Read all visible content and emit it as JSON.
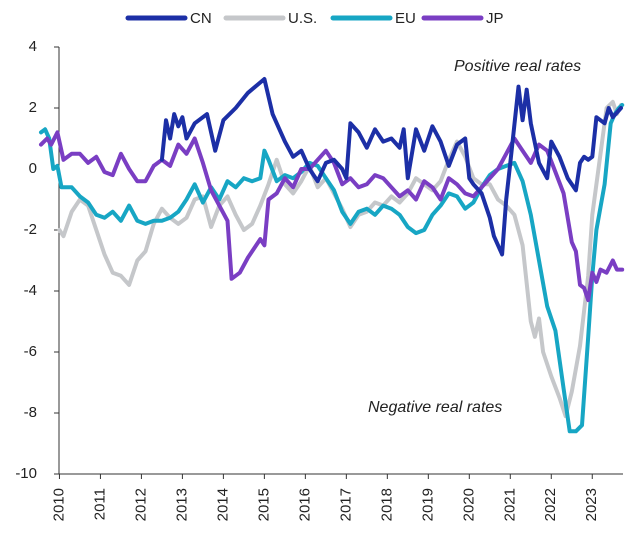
{
  "chart_data": {
    "type": "line",
    "annotations": [
      "Positive real rates",
      "Negative real rates"
    ],
    "xlim": [
      2009.55,
      2023.75
    ],
    "xticks": [
      2010,
      2011,
      2012,
      2013,
      2014,
      2015,
      2016,
      2017,
      2018,
      2019,
      2020,
      2021,
      2022,
      2023
    ],
    "ylim": [
      -10,
      4
    ],
    "yticks": [
      -10,
      -8,
      -6,
      -4,
      -2,
      0,
      2,
      4
    ],
    "grid": false,
    "legend": "top",
    "series": [
      {
        "name": "CN",
        "color": "#1c2fa6",
        "x": [
          2012.5,
          2012.6,
          2012.7,
          2012.8,
          2012.9,
          2013.0,
          2013.1,
          2013.3,
          2013.6,
          2013.8,
          2014.0,
          2014.3,
          2014.6,
          2015.0,
          2015.2,
          2015.5,
          2015.7,
          2015.9,
          2016.1,
          2016.3,
          2016.5,
          2016.7,
          2016.9,
          2017.0,
          2017.1,
          2017.3,
          2017.5,
          2017.7,
          2017.9,
          2018.1,
          2018.3,
          2018.4,
          2018.5,
          2018.7,
          2018.9,
          2019.1,
          2019.3,
          2019.5,
          2019.7,
          2019.9,
          2020.0,
          2020.1,
          2020.3,
          2020.5,
          2020.6,
          2020.8,
          2020.9,
          2021.0,
          2021.2,
          2021.3,
          2021.4,
          2021.5,
          2021.7,
          2021.9,
          2022.0,
          2022.2,
          2022.4,
          2022.6,
          2022.7,
          2022.8,
          2022.9,
          2023.0,
          2023.1,
          2023.3,
          2023.4,
          2023.5,
          2023.7
        ],
        "values": [
          0.3,
          1.6,
          1.0,
          1.8,
          1.4,
          1.7,
          1.0,
          1.5,
          1.8,
          0.6,
          1.6,
          2.0,
          2.5,
          2.95,
          1.8,
          0.9,
          0.4,
          0.6,
          0.0,
          -0.4,
          0.2,
          0.3,
          0.0,
          -0.3,
          1.5,
          1.2,
          0.7,
          1.3,
          0.9,
          1.0,
          0.7,
          1.3,
          -0.3,
          1.3,
          0.6,
          1.4,
          0.9,
          0.1,
          0.8,
          1.0,
          -0.3,
          -0.5,
          -0.8,
          -1.6,
          -2.2,
          -2.8,
          -1.0,
          0.2,
          2.7,
          1.6,
          2.6,
          1.5,
          0.2,
          -0.3,
          0.9,
          0.4,
          -0.3,
          -0.7,
          0.2,
          0.4,
          0.3,
          0.4,
          1.7,
          1.5,
          2.0,
          1.7,
          2.0
        ]
      },
      {
        "name": "U.S.",
        "color": "#c5c7ca",
        "x": [
          2010.0,
          2010.1,
          2010.3,
          2010.5,
          2010.7,
          2010.9,
          2011.1,
          2011.3,
          2011.5,
          2011.7,
          2011.9,
          2012.1,
          2012.3,
          2012.5,
          2012.7,
          2012.9,
          2013.1,
          2013.3,
          2013.5,
          2013.7,
          2013.9,
          2014.1,
          2014.3,
          2014.5,
          2014.7,
          2014.9,
          2015.1,
          2015.3,
          2015.5,
          2015.7,
          2015.9,
          2016.1,
          2016.3,
          2016.5,
          2016.7,
          2016.9,
          2017.1,
          2017.3,
          2017.5,
          2017.7,
          2017.9,
          2018.1,
          2018.3,
          2018.5,
          2018.7,
          2018.9,
          2019.1,
          2019.3,
          2019.5,
          2019.7,
          2019.9,
          2020.1,
          2020.3,
          2020.5,
          2020.7,
          2020.9,
          2021.1,
          2021.3,
          2021.5,
          2021.6,
          2021.7,
          2021.8,
          2022.0,
          2022.2,
          2022.35,
          2022.5,
          2022.7,
          2022.9,
          2023.0,
          2023.2,
          2023.35,
          2023.5,
          2023.6,
          2023.7
        ],
        "values": [
          -2.0,
          -2.2,
          -1.4,
          -1.0,
          -1.2,
          -2.0,
          -2.8,
          -3.4,
          -3.5,
          -3.8,
          -3.0,
          -2.7,
          -1.8,
          -1.3,
          -1.6,
          -1.8,
          -1.6,
          -1.0,
          -0.9,
          -1.9,
          -1.2,
          -0.9,
          -1.5,
          -2.0,
          -1.8,
          -1.2,
          -0.5,
          0.3,
          -0.5,
          -0.8,
          -0.4,
          0.1,
          -0.6,
          -0.3,
          -0.8,
          -1.3,
          -1.9,
          -1.5,
          -1.4,
          -1.1,
          -1.2,
          -0.9,
          -1.1,
          -0.8,
          -0.3,
          -0.5,
          -0.7,
          -0.4,
          0.3,
          0.9,
          0.4,
          -0.3,
          -0.5,
          -0.5,
          -1.0,
          -1.2,
          -1.5,
          -2.5,
          -5.0,
          -5.5,
          -4.9,
          -6.0,
          -6.8,
          -7.5,
          -8.1,
          -7.3,
          -5.8,
          -3.5,
          -1.5,
          0.5,
          2.0,
          2.2,
          1.8,
          2.1
        ]
      },
      {
        "name": "EU",
        "color": "#17a6c4",
        "x": [
          2009.55,
          2009.65,
          2009.75,
          2009.85,
          2009.95,
          2010.05,
          2010.3,
          2010.5,
          2010.7,
          2010.9,
          2011.1,
          2011.3,
          2011.5,
          2011.7,
          2011.9,
          2012.1,
          2012.3,
          2012.5,
          2012.7,
          2012.9,
          2013.1,
          2013.3,
          2013.5,
          2013.7,
          2013.9,
          2014.1,
          2014.3,
          2014.5,
          2014.7,
          2014.9,
          2015.0,
          2015.1,
          2015.3,
          2015.5,
          2015.7,
          2015.9,
          2016.1,
          2016.3,
          2016.5,
          2016.7,
          2016.9,
          2017.1,
          2017.3,
          2017.5,
          2017.7,
          2017.9,
          2018.1,
          2018.3,
          2018.5,
          2018.7,
          2018.9,
          2019.1,
          2019.3,
          2019.5,
          2019.7,
          2019.9,
          2020.1,
          2020.3,
          2020.5,
          2020.7,
          2020.9,
          2021.1,
          2021.3,
          2021.5,
          2021.7,
          2021.9,
          2022.1,
          2022.3,
          2022.45,
          2022.6,
          2022.75,
          2022.9,
          2023.0,
          2023.1,
          2023.3,
          2023.45,
          2023.55,
          2023.65,
          2023.73
        ],
        "values": [
          1.2,
          1.3,
          1.0,
          0.0,
          0.1,
          -0.6,
          -0.6,
          -0.9,
          -1.1,
          -1.5,
          -1.6,
          -1.4,
          -1.7,
          -1.2,
          -1.7,
          -1.8,
          -1.7,
          -1.7,
          -1.6,
          -1.4,
          -1.0,
          -0.5,
          -1.1,
          -0.6,
          -1.0,
          -0.4,
          -0.6,
          -0.3,
          -0.4,
          -0.3,
          0.6,
          0.3,
          -0.4,
          -0.2,
          -0.3,
          -0.1,
          0.2,
          0.1,
          -0.3,
          -0.7,
          -1.4,
          -1.8,
          -1.4,
          -1.3,
          -1.5,
          -1.2,
          -1.3,
          -1.5,
          -1.9,
          -2.1,
          -2.0,
          -1.5,
          -1.2,
          -0.8,
          -0.9,
          -1.3,
          -1.1,
          -0.6,
          -0.2,
          0.0,
          0.1,
          0.2,
          -0.4,
          -1.5,
          -3.0,
          -4.5,
          -5.3,
          -7.2,
          -8.6,
          -8.6,
          -8.4,
          -5.5,
          -3.5,
          -2.0,
          -0.5,
          1.5,
          1.8,
          2.0,
          2.1
        ]
      },
      {
        "name": "JP",
        "color": "#7a3ec3",
        "x": [
          2009.55,
          2009.7,
          2009.8,
          2009.95,
          2010.1,
          2010.3,
          2010.5,
          2010.7,
          2010.9,
          2011.1,
          2011.3,
          2011.5,
          2011.7,
          2011.9,
          2012.1,
          2012.3,
          2012.5,
          2012.7,
          2012.9,
          2013.1,
          2013.3,
          2013.5,
          2013.7,
          2013.9,
          2014.1,
          2014.2,
          2014.4,
          2014.6,
          2014.8,
          2014.9,
          2015.0,
          2015.1,
          2015.3,
          2015.5,
          2015.7,
          2015.9,
          2016.1,
          2016.3,
          2016.5,
          2016.7,
          2016.9,
          2017.1,
          2017.3,
          2017.5,
          2017.7,
          2017.9,
          2018.1,
          2018.3,
          2018.5,
          2018.7,
          2018.9,
          2019.1,
          2019.3,
          2019.5,
          2019.7,
          2019.9,
          2020.1,
          2020.3,
          2020.5,
          2020.7,
          2020.9,
          2021.1,
          2021.3,
          2021.5,
          2021.7,
          2021.9,
          2022.1,
          2022.3,
          2022.5,
          2022.6,
          2022.7,
          2022.8,
          2022.9,
          2023.0,
          2023.1,
          2023.2,
          2023.35,
          2023.5,
          2023.6,
          2023.73
        ],
        "values": [
          0.8,
          1.0,
          0.8,
          1.2,
          0.3,
          0.5,
          0.5,
          0.2,
          0.4,
          -0.1,
          -0.2,
          0.5,
          0.0,
          -0.4,
          -0.4,
          0.1,
          0.3,
          0.1,
          0.8,
          0.5,
          1.0,
          0.2,
          -0.7,
          -1.2,
          -1.7,
          -3.6,
          -3.4,
          -2.9,
          -2.5,
          -2.3,
          -2.5,
          -1.0,
          -0.8,
          -0.3,
          -0.6,
          0.0,
          0.0,
          0.3,
          0.6,
          0.2,
          -0.5,
          -0.3,
          -0.6,
          -0.5,
          -0.2,
          -0.3,
          -0.6,
          -0.9,
          -0.7,
          -1.0,
          -0.4,
          -0.6,
          -1.0,
          -0.3,
          -0.5,
          -0.8,
          -0.9,
          -0.6,
          -0.3,
          0.0,
          0.5,
          1.0,
          0.6,
          0.2,
          0.8,
          0.6,
          -0.1,
          -0.8,
          -2.4,
          -2.7,
          -3.8,
          -3.9,
          -4.3,
          -3.4,
          -3.7,
          -3.3,
          -3.4,
          -3.0,
          -3.3,
          -3.3
        ]
      }
    ]
  }
}
